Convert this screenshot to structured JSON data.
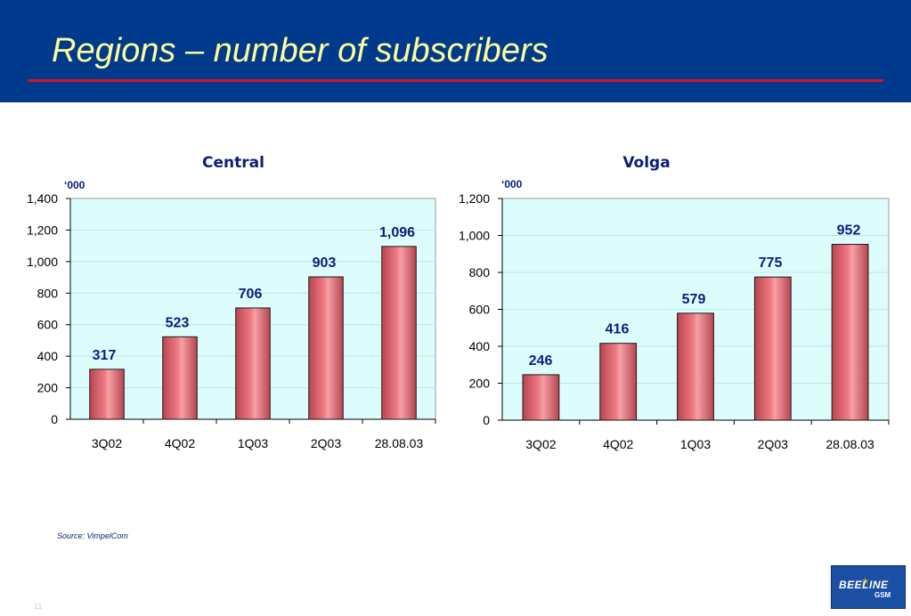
{
  "page": {
    "title": "Regions – number of subscribers",
    "source": "Source: VimpelCom",
    "page_number": "11"
  },
  "logo": {
    "text": "BEELINE",
    "sub": "GSM"
  },
  "colors": {
    "header_bg": "#003a8c",
    "title": "#ffff99",
    "rule": "#e0101f",
    "plot_bg": "#ddfdfd",
    "bar": "#f07d85",
    "label": "#0a1e7a"
  },
  "chart_data": [
    {
      "type": "bar",
      "title": "Central",
      "unit": "‘000",
      "categories": [
        "3Q02",
        "4Q02",
        "1Q03",
        "2Q03",
        "28.08.03"
      ],
      "values": [
        317,
        523,
        706,
        903,
        1096
      ],
      "value_labels": [
        "317",
        "523",
        "706",
        "903",
        "1,096"
      ],
      "ylim": [
        0,
        1400
      ],
      "yticks": [
        0,
        200,
        400,
        600,
        800,
        1000,
        1200,
        1400
      ],
      "ytick_labels": [
        "0",
        "200",
        "400",
        "600",
        "800",
        "1,000",
        "1,200",
        "1,400"
      ],
      "grid": true,
      "legend": "none"
    },
    {
      "type": "bar",
      "title": "Volga",
      "unit": "‘000",
      "categories": [
        "3Q02",
        "4Q02",
        "1Q03",
        "2Q03",
        "28.08.03"
      ],
      "values": [
        246,
        416,
        579,
        775,
        952
      ],
      "value_labels": [
        "246",
        "416",
        "579",
        "775",
        "952"
      ],
      "ylim": [
        0,
        1200
      ],
      "yticks": [
        0,
        200,
        400,
        600,
        800,
        1000,
        1200
      ],
      "ytick_labels": [
        "0",
        "200",
        "400",
        "600",
        "800",
        "1,000",
        "1,200"
      ],
      "grid": true,
      "legend": "none"
    }
  ]
}
